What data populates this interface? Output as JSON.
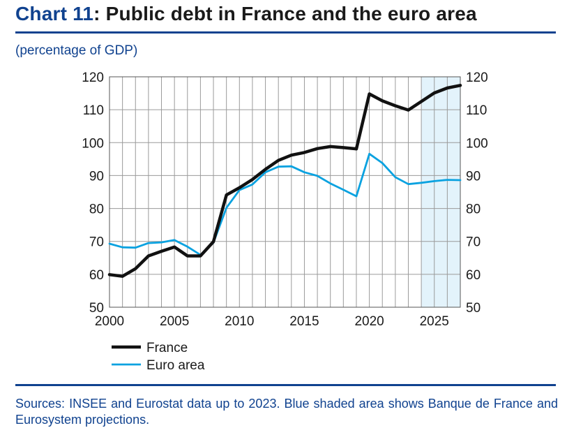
{
  "header": {
    "title_num": "Chart 11",
    "title_rest": ": Public debt in France and the euro area",
    "subtitle": "(percentage of GDP)"
  },
  "footer": {
    "sources": "Sources: INSEE and Eurostat data up to 2023. Blue shaded area shows Banque de France and Eurosystem projections."
  },
  "colors": {
    "brand": "#10428f",
    "france": "#111111",
    "euro_area": "#0aa2e0",
    "projection_shade": "#e3f3fb",
    "grid": "#9a9a9a"
  },
  "chart_data": {
    "type": "line",
    "title": "",
    "xlabel": "",
    "ylabel": "",
    "xlim": [
      2000,
      2027
    ],
    "ylim": [
      50,
      120
    ],
    "x_ticks": [
      2000,
      2005,
      2010,
      2015,
      2020,
      2025
    ],
    "y_ticks": [
      50,
      60,
      70,
      80,
      90,
      100,
      110,
      120
    ],
    "grid": true,
    "dual_y_axis": true,
    "projection_span": [
      2024,
      2027
    ],
    "legend_position": "bottom-left",
    "x": [
      2000,
      2001,
      2002,
      2003,
      2004,
      2005,
      2006,
      2007,
      2008,
      2009,
      2010,
      2011,
      2012,
      2013,
      2014,
      2015,
      2016,
      2017,
      2018,
      2019,
      2020,
      2021,
      2022,
      2023,
      2024,
      2025,
      2026,
      2027
    ],
    "series": [
      {
        "name": "France",
        "color": "#111111",
        "values": [
          59.9,
          59.4,
          61.7,
          65.6,
          67.0,
          68.3,
          65.6,
          65.6,
          69.9,
          84.1,
          86.3,
          88.8,
          91.9,
          94.6,
          96.2,
          97.0,
          98.2,
          98.8,
          98.5,
          98.1,
          114.8,
          112.7,
          111.2,
          109.9,
          112.5,
          115.1,
          116.6,
          117.4
        ]
      },
      {
        "name": "Euro area",
        "color": "#0aa2e0",
        "values": [
          69.3,
          68.2,
          68.1,
          69.5,
          69.7,
          70.4,
          68.4,
          65.9,
          69.6,
          80.2,
          85.6,
          87.3,
          91.0,
          92.7,
          92.8,
          91.0,
          89.9,
          87.6,
          85.7,
          83.7,
          96.6,
          93.8,
          89.5,
          87.4,
          87.8,
          88.3,
          88.7,
          88.6
        ]
      }
    ]
  }
}
